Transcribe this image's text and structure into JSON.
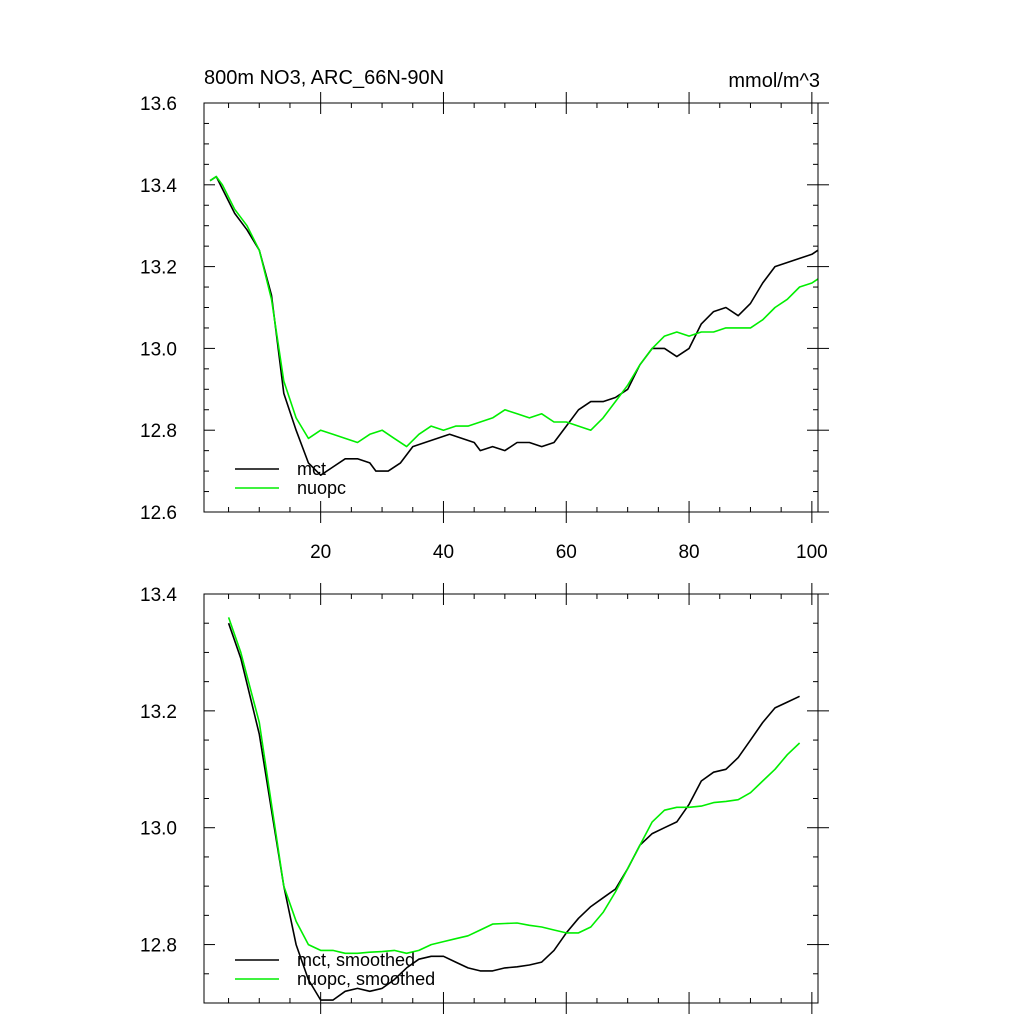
{
  "chart_data": [
    {
      "type": "line",
      "title": "800m NO3, ARC_66N-90N",
      "units": "mmol/m^3",
      "xlim": [
        1,
        101
      ],
      "ylim": [
        12.6,
        13.6
      ],
      "x_ticks": [
        20,
        40,
        60,
        80,
        100
      ],
      "x_tick_labels": [
        "20",
        "40",
        "60",
        "80",
        "100"
      ],
      "y_ticks": [
        12.6,
        12.8,
        13.0,
        13.2,
        13.4,
        13.6
      ],
      "y_tick_labels": [
        "12.6",
        "12.8",
        "13.0",
        "13.2",
        "13.4",
        "13.6"
      ],
      "legend": "bottom-left",
      "series": [
        {
          "name": "mct",
          "color": "#000000",
          "points": [
            [
              2,
              13.41
            ],
            [
              3,
              13.42
            ],
            [
              4,
              13.39
            ],
            [
              6,
              13.33
            ],
            [
              8,
              13.29
            ],
            [
              10,
              13.24
            ],
            [
              12,
              13.13
            ],
            [
              14,
              12.89
            ],
            [
              16,
              12.8
            ],
            [
              18,
              12.72
            ],
            [
              20,
              12.69
            ],
            [
              22,
              12.71
            ],
            [
              24,
              12.73
            ],
            [
              26,
              12.73
            ],
            [
              28,
              12.72
            ],
            [
              29,
              12.7
            ],
            [
              31,
              12.7
            ],
            [
              33,
              12.72
            ],
            [
              35,
              12.76
            ],
            [
              37,
              12.77
            ],
            [
              39,
              12.78
            ],
            [
              41,
              12.79
            ],
            [
              43,
              12.78
            ],
            [
              45,
              12.77
            ],
            [
              46,
              12.75
            ],
            [
              48,
              12.76
            ],
            [
              50,
              12.75
            ],
            [
              52,
              12.77
            ],
            [
              54,
              12.77
            ],
            [
              56,
              12.76
            ],
            [
              58,
              12.77
            ],
            [
              60,
              12.81
            ],
            [
              62,
              12.85
            ],
            [
              64,
              12.87
            ],
            [
              66,
              12.87
            ],
            [
              68,
              12.88
            ],
            [
              70,
              12.9
            ],
            [
              72,
              12.96
            ],
            [
              74,
              13.0
            ],
            [
              76,
              13.0
            ],
            [
              78,
              12.98
            ],
            [
              80,
              13.0
            ],
            [
              82,
              13.06
            ],
            [
              84,
              13.09
            ],
            [
              86,
              13.1
            ],
            [
              88,
              13.08
            ],
            [
              90,
              13.11
            ],
            [
              92,
              13.16
            ],
            [
              94,
              13.2
            ],
            [
              96,
              13.21
            ],
            [
              98,
              13.22
            ],
            [
              100,
              13.23
            ],
            [
              101,
              13.24
            ]
          ]
        },
        {
          "name": "nuopc",
          "color": "#00ee00",
          "points": [
            [
              2,
              13.41
            ],
            [
              3,
              13.42
            ],
            [
              4,
              13.4
            ],
            [
              6,
              13.34
            ],
            [
              8,
              13.3
            ],
            [
              10,
              13.24
            ],
            [
              12,
              13.12
            ],
            [
              14,
              12.92
            ],
            [
              16,
              12.83
            ],
            [
              18,
              12.78
            ],
            [
              20,
              12.8
            ],
            [
              22,
              12.79
            ],
            [
              24,
              12.78
            ],
            [
              26,
              12.77
            ],
            [
              28,
              12.79
            ],
            [
              30,
              12.8
            ],
            [
              32,
              12.78
            ],
            [
              34,
              12.76
            ],
            [
              36,
              12.79
            ],
            [
              38,
              12.81
            ],
            [
              40,
              12.8
            ],
            [
              42,
              12.81
            ],
            [
              44,
              12.81
            ],
            [
              46,
              12.82
            ],
            [
              48,
              12.83
            ],
            [
              50,
              12.85
            ],
            [
              52,
              12.84
            ],
            [
              54,
              12.83
            ],
            [
              56,
              12.84
            ],
            [
              58,
              12.82
            ],
            [
              60,
              12.82
            ],
            [
              62,
              12.81
            ],
            [
              64,
              12.8
            ],
            [
              66,
              12.83
            ],
            [
              68,
              12.87
            ],
            [
              70,
              12.91
            ],
            [
              72,
              12.96
            ],
            [
              74,
              13.0
            ],
            [
              76,
              13.03
            ],
            [
              78,
              13.04
            ],
            [
              80,
              13.03
            ],
            [
              82,
              13.04
            ],
            [
              84,
              13.04
            ],
            [
              86,
              13.05
            ],
            [
              88,
              13.05
            ],
            [
              90,
              13.05
            ],
            [
              92,
              13.07
            ],
            [
              94,
              13.1
            ],
            [
              96,
              13.12
            ],
            [
              98,
              13.15
            ],
            [
              100,
              13.16
            ],
            [
              101,
              13.17
            ]
          ]
        }
      ]
    },
    {
      "type": "line",
      "title": "",
      "units": "",
      "xlim": [
        1,
        101
      ],
      "ylim": [
        12.7,
        13.4
      ],
      "x_ticks": [
        20,
        40,
        60,
        80,
        100
      ],
      "x_tick_labels": [],
      "y_ticks": [
        12.8,
        13.0,
        13.2,
        13.4
      ],
      "y_tick_labels": [
        "12.8",
        "13.0",
        "13.2",
        "13.4"
      ],
      "legend": "bottom-left",
      "series": [
        {
          "name": "mct, smoothed",
          "color": "#000000",
          "points": [
            [
              5,
              13.35
            ],
            [
              7,
              13.29
            ],
            [
              10,
              13.16
            ],
            [
              12,
              13.03
            ],
            [
              14,
              12.9
            ],
            [
              16,
              12.8
            ],
            [
              18,
              12.74
            ],
            [
              20,
              12.705
            ],
            [
              22,
              12.705
            ],
            [
              24,
              12.72
            ],
            [
              26,
              12.725
            ],
            [
              28,
              12.72
            ],
            [
              30,
              12.725
            ],
            [
              32,
              12.74
            ],
            [
              34,
              12.76
            ],
            [
              36,
              12.775
            ],
            [
              38,
              12.78
            ],
            [
              40,
              12.78
            ],
            [
              42,
              12.77
            ],
            [
              44,
              12.76
            ],
            [
              46,
              12.755
            ],
            [
              48,
              12.755
            ],
            [
              50,
              12.76
            ],
            [
              52,
              12.762
            ],
            [
              54,
              12.765
            ],
            [
              56,
              12.77
            ],
            [
              58,
              12.79
            ],
            [
              60,
              12.82
            ],
            [
              62,
              12.845
            ],
            [
              64,
              12.865
            ],
            [
              66,
              12.88
            ],
            [
              68,
              12.895
            ],
            [
              70,
              12.93
            ],
            [
              72,
              12.97
            ],
            [
              74,
              12.99
            ],
            [
              76,
              13.0
            ],
            [
              78,
              13.01
            ],
            [
              80,
              13.04
            ],
            [
              82,
              13.08
            ],
            [
              84,
              13.095
            ],
            [
              86,
              13.1
            ],
            [
              88,
              13.12
            ],
            [
              90,
              13.15
            ],
            [
              92,
              13.18
            ],
            [
              94,
              13.205
            ],
            [
              96,
              13.215
            ],
            [
              98,
              13.225
            ]
          ]
        },
        {
          "name": "nuopc, smoothed",
          "color": "#00ee00",
          "points": [
            [
              5,
              13.36
            ],
            [
              7,
              13.3
            ],
            [
              10,
              13.18
            ],
            [
              12,
              13.04
            ],
            [
              14,
              12.9
            ],
            [
              16,
              12.84
            ],
            [
              18,
              12.8
            ],
            [
              20,
              12.79
            ],
            [
              22,
              12.79
            ],
            [
              24,
              12.785
            ],
            [
              26,
              12.785
            ],
            [
              28,
              12.787
            ],
            [
              30,
              12.788
            ],
            [
              32,
              12.79
            ],
            [
              34,
              12.785
            ],
            [
              36,
              12.79
            ],
            [
              38,
              12.8
            ],
            [
              40,
              12.805
            ],
            [
              42,
              12.81
            ],
            [
              44,
              12.815
            ],
            [
              46,
              12.825
            ],
            [
              48,
              12.835
            ],
            [
              50,
              12.836
            ],
            [
              52,
              12.837
            ],
            [
              54,
              12.833
            ],
            [
              56,
              12.83
            ],
            [
              58,
              12.825
            ],
            [
              60,
              12.82
            ],
            [
              62,
              12.82
            ],
            [
              64,
              12.83
            ],
            [
              66,
              12.855
            ],
            [
              68,
              12.89
            ],
            [
              70,
              12.93
            ],
            [
              72,
              12.97
            ],
            [
              74,
              13.01
            ],
            [
              76,
              13.03
            ],
            [
              78,
              13.035
            ],
            [
              80,
              13.035
            ],
            [
              82,
              13.037
            ],
            [
              84,
              13.043
            ],
            [
              86,
              13.045
            ],
            [
              88,
              13.048
            ],
            [
              90,
              13.06
            ],
            [
              92,
              13.08
            ],
            [
              94,
              13.1
            ],
            [
              96,
              13.125
            ],
            [
              98,
              13.145
            ]
          ]
        }
      ]
    }
  ]
}
